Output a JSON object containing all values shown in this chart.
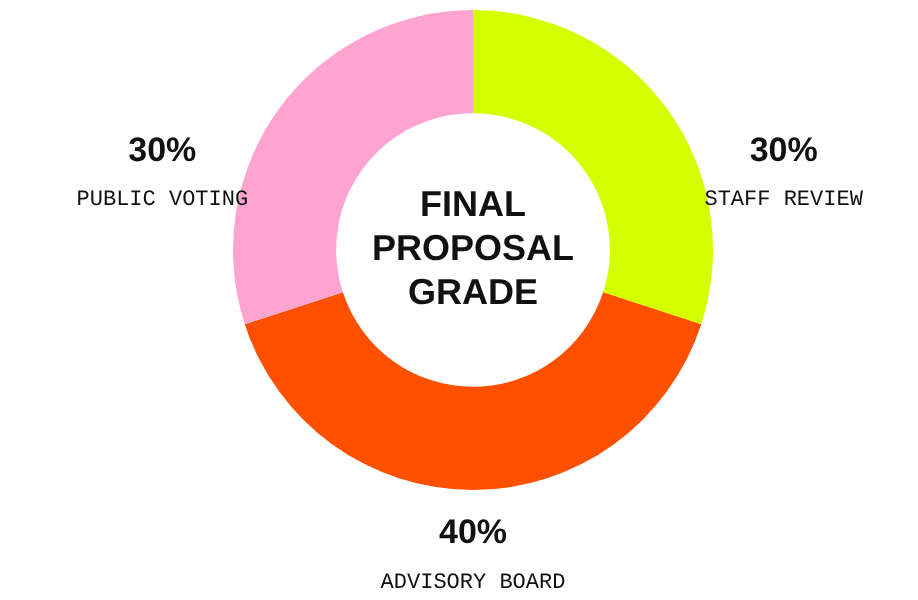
{
  "chart_data": {
    "type": "donut",
    "title": "FINAL PROPOSAL GRADE",
    "categories": [
      "STAFF REVIEW",
      "ADVISORY BOARD",
      "PUBLIC VOTING"
    ],
    "values": [
      30,
      40,
      30
    ],
    "value_labels": [
      "30%",
      "40%",
      "30%"
    ],
    "colors": [
      "#d4ff00",
      "#ff5000",
      "#ffa3d0"
    ],
    "legend": false
  }
}
